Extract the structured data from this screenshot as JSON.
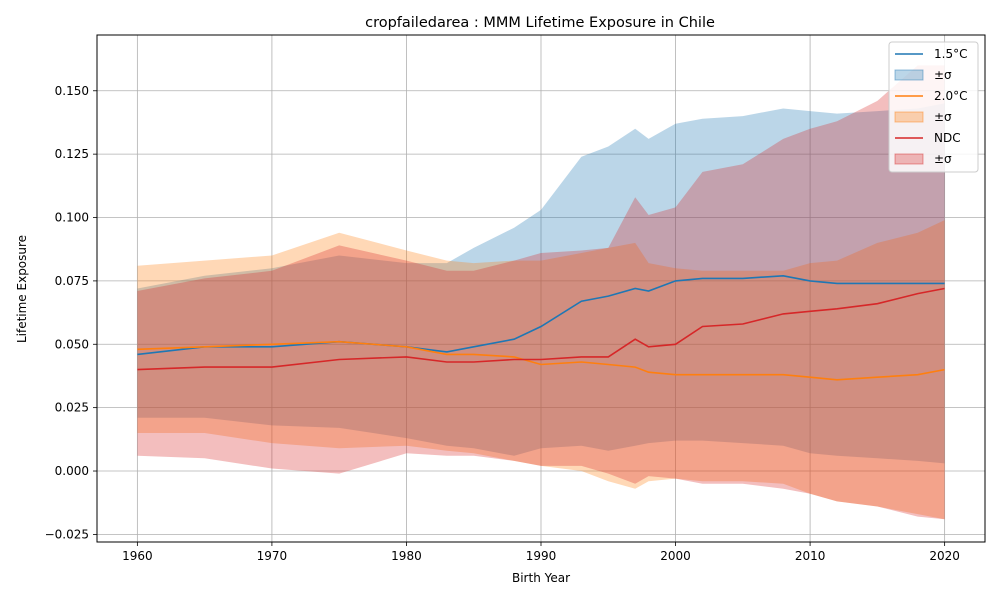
{
  "chart_data": {
    "type": "line",
    "title": "cropfailedarea : MMM Lifetime Exposure in Chile",
    "xlabel": "Birth Year",
    "ylabel": "Lifetime Exposure",
    "xlim": [
      1957,
      2023
    ],
    "ylim": [
      -0.028,
      0.172
    ],
    "xticks": [
      1960,
      1970,
      1980,
      1990,
      2000,
      2010,
      2020
    ],
    "yticks": [
      -0.025,
      0.0,
      0.025,
      0.05,
      0.075,
      0.1,
      0.125,
      0.15
    ],
    "ytick_labels": [
      "−0.025",
      "0.000",
      "0.025",
      "0.050",
      "0.075",
      "0.100",
      "0.125",
      "0.150"
    ],
    "grid": true,
    "legend_position": "top-right",
    "x": [
      1960,
      1965,
      1970,
      1975,
      1980,
      1983,
      1985,
      1988,
      1990,
      1993,
      1995,
      1997,
      1998,
      2000,
      2002,
      2005,
      2008,
      2010,
      2012,
      2015,
      2018,
      2020
    ],
    "series": [
      {
        "name": "1.5°C",
        "color": "#1f77b4",
        "values": [
          0.046,
          0.049,
          0.049,
          0.051,
          0.049,
          0.047,
          0.049,
          0.052,
          0.057,
          0.067,
          0.069,
          0.072,
          0.071,
          0.075,
          0.076,
          0.076,
          0.077,
          0.075,
          0.074,
          0.074,
          0.074,
          0.074
        ],
        "upper": [
          0.072,
          0.077,
          0.08,
          0.085,
          0.082,
          0.082,
          0.088,
          0.096,
          0.103,
          0.124,
          0.128,
          0.135,
          0.131,
          0.137,
          0.139,
          0.14,
          0.143,
          0.142,
          0.141,
          0.142,
          0.143,
          0.145
        ],
        "lower": [
          0.021,
          0.021,
          0.018,
          0.017,
          0.013,
          0.01,
          0.009,
          0.006,
          0.009,
          0.01,
          0.008,
          0.01,
          0.011,
          0.012,
          0.012,
          0.011,
          0.01,
          0.007,
          0.006,
          0.005,
          0.004,
          0.003
        ]
      },
      {
        "name": "2.0°C",
        "color": "#ff7f0e",
        "values": [
          0.048,
          0.049,
          0.05,
          0.051,
          0.049,
          0.046,
          0.046,
          0.045,
          0.042,
          0.043,
          0.042,
          0.041,
          0.039,
          0.038,
          0.038,
          0.038,
          0.038,
          0.037,
          0.036,
          0.037,
          0.038,
          0.04
        ],
        "upper": [
          0.081,
          0.083,
          0.085,
          0.094,
          0.087,
          0.083,
          0.082,
          0.083,
          0.083,
          0.086,
          0.088,
          0.09,
          0.082,
          0.08,
          0.079,
          0.079,
          0.079,
          0.082,
          0.083,
          0.09,
          0.094,
          0.099
        ],
        "lower": [
          0.015,
          0.015,
          0.011,
          0.009,
          0.01,
          0.008,
          0.007,
          0.004,
          0.002,
          0.0,
          -0.004,
          -0.007,
          -0.004,
          -0.003,
          -0.004,
          -0.004,
          -0.005,
          -0.009,
          -0.012,
          -0.014,
          -0.017,
          -0.019
        ]
      },
      {
        "name": "NDC",
        "color": "#d62728",
        "values": [
          0.04,
          0.041,
          0.041,
          0.044,
          0.045,
          0.043,
          0.043,
          0.044,
          0.044,
          0.045,
          0.045,
          0.052,
          0.049,
          0.05,
          0.057,
          0.058,
          0.062,
          0.063,
          0.064,
          0.066,
          0.07,
          0.072
        ],
        "upper": [
          0.071,
          0.076,
          0.079,
          0.089,
          0.083,
          0.079,
          0.079,
          0.083,
          0.086,
          0.087,
          0.088,
          0.108,
          0.101,
          0.104,
          0.118,
          0.121,
          0.131,
          0.135,
          0.138,
          0.146,
          0.16,
          0.16
        ],
        "lower": [
          0.006,
          0.005,
          0.001,
          -0.001,
          0.007,
          0.006,
          0.006,
          0.004,
          0.002,
          0.002,
          -0.001,
          -0.005,
          -0.002,
          -0.003,
          -0.005,
          -0.005,
          -0.007,
          -0.009,
          -0.012,
          -0.014,
          -0.018,
          -0.019
        ]
      }
    ],
    "legend": [
      {
        "label": "1.5°C",
        "kind": "line",
        "color": "#1f77b4"
      },
      {
        "label": "±σ",
        "kind": "band",
        "color": "#1f77b4"
      },
      {
        "label": "2.0°C",
        "kind": "line",
        "color": "#ff7f0e"
      },
      {
        "label": "±σ",
        "kind": "band",
        "color": "#ff7f0e"
      },
      {
        "label": "NDC",
        "kind": "line",
        "color": "#d62728"
      },
      {
        "label": "±σ",
        "kind": "band",
        "color": "#d62728"
      }
    ]
  }
}
